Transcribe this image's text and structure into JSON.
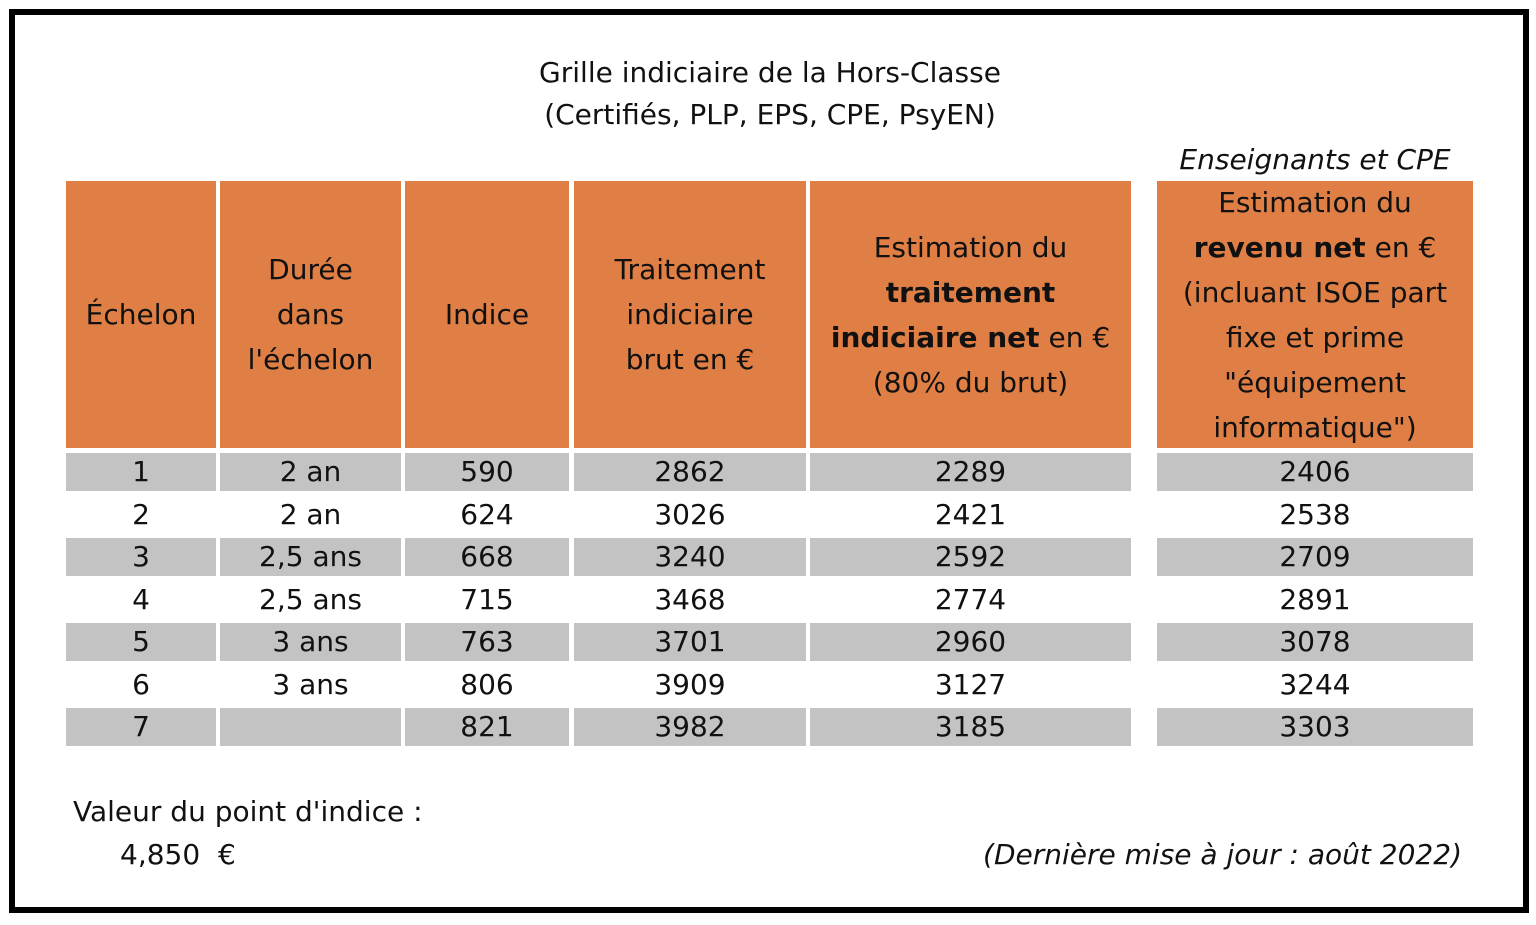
{
  "title": {
    "line1": "Grille indiciaire de la Hors-Classe",
    "line2": "(Certifiés, PLP, EPS, CPE, PsyEN)"
  },
  "group_label": "Enseignants et CPE",
  "colors": {
    "header_bg": "#E07F45",
    "row_shade": "#C3C3C3",
    "border": "#000000"
  },
  "headers": {
    "echelon": "Échelon",
    "duree": [
      "Durée",
      "dans",
      "l'échelon"
    ],
    "indice": "Indice",
    "traitement_brut": [
      "Traitement",
      "indiciaire",
      "brut en €"
    ],
    "traitement_net": {
      "line1": "Estimation du",
      "bold1": "traitement",
      "bold2": "indiciaire net",
      "suffix2": " en €",
      "line4": "(80% du brut)"
    },
    "revenu_net": {
      "line1": "Estimation du",
      "bold": "revenu net",
      "suffix": " en €",
      "line3": "(incluant ISOE part",
      "line4": "fixe et prime",
      "line5": "\"équipement",
      "line6": "informatique\")"
    }
  },
  "rows": [
    {
      "echelon": "1",
      "duree": "2 an",
      "indice": "590",
      "brut": "2862",
      "net": "2289",
      "revenu": "2406"
    },
    {
      "echelon": "2",
      "duree": "2 an",
      "indice": "624",
      "brut": "3026",
      "net": "2421",
      "revenu": "2538"
    },
    {
      "echelon": "3",
      "duree": "2,5 ans",
      "indice": "668",
      "brut": "3240",
      "net": "2592",
      "revenu": "2709"
    },
    {
      "echelon": "4",
      "duree": "2,5 ans",
      "indice": "715",
      "brut": "3468",
      "net": "2774",
      "revenu": "2891"
    },
    {
      "echelon": "5",
      "duree": "3 ans",
      "indice": "763",
      "brut": "3701",
      "net": "2960",
      "revenu": "3078"
    },
    {
      "echelon": "6",
      "duree": "3 ans",
      "indice": "806",
      "brut": "3909",
      "net": "3127",
      "revenu": "3244"
    },
    {
      "echelon": "7",
      "duree": "",
      "indice": "821",
      "brut": "3982",
      "net": "3185",
      "revenu": "3303"
    }
  ],
  "footer": {
    "point_label": "Valeur du point d'indice :",
    "point_value": "4,850  €",
    "update": "(Dernière mise à jour : août 2022)"
  }
}
